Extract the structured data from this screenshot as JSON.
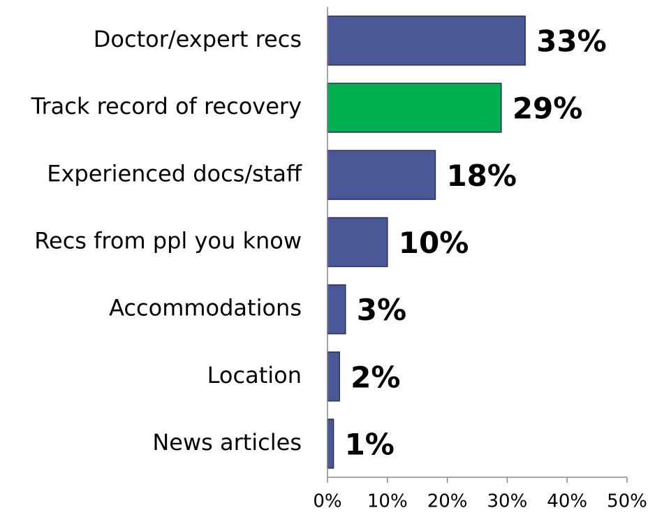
{
  "chart_data": {
    "type": "bar",
    "orientation": "horizontal",
    "categories": [
      "Doctor/expert recs",
      "Track record of recovery",
      "Experienced docs/staff",
      "Recs from ppl you know",
      "Accommodations",
      "Location",
      "News articles"
    ],
    "values": [
      33,
      29,
      18,
      10,
      3,
      2,
      1
    ],
    "value_labels": [
      "33%",
      "29%",
      "18%",
      "10%",
      "3%",
      "2%",
      "1%"
    ],
    "colors": [
      "#4b5898",
      "#00b050",
      "#4b5898",
      "#4b5898",
      "#4b5898",
      "#4b5898",
      "#4b5898"
    ],
    "xlim": [
      0,
      50
    ],
    "xticks": [
      {
        "value": 0,
        "label": "0%"
      },
      {
        "value": 10,
        "label": "10%"
      },
      {
        "value": 20,
        "label": "20%"
      },
      {
        "value": 30,
        "label": "30%"
      },
      {
        "value": 40,
        "label": "40%"
      },
      {
        "value": 50,
        "label": "50%"
      }
    ],
    "grid": false
  }
}
